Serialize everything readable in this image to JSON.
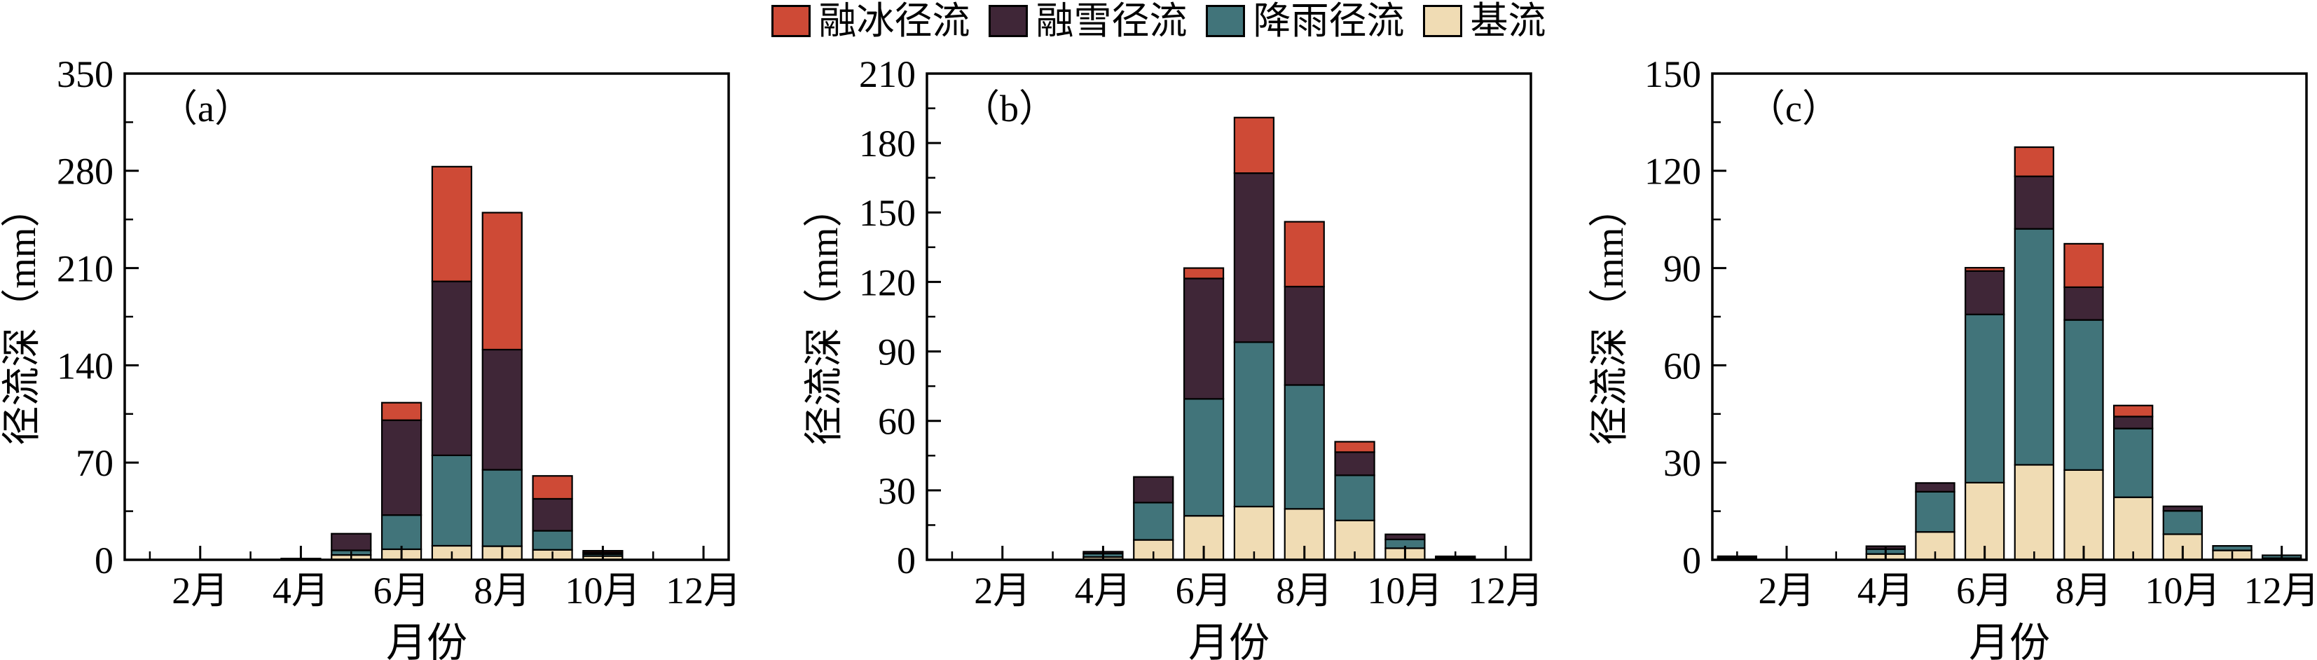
{
  "legend": {
    "items": [
      {
        "label": "融冰径流",
        "color": "#CE4A36"
      },
      {
        "label": "融雪径流",
        "color": "#3F2637"
      },
      {
        "label": "降雨径流",
        "color": "#41747A"
      },
      {
        "label": "基流",
        "color": "#F0DCB4"
      }
    ]
  },
  "colors": {
    "ice_melt": "#CE4A36",
    "snow_melt": "#3F2637",
    "rainfall": "#41747A",
    "baseflow": "#F0DCB4",
    "axis": "#000000"
  },
  "chart_data": [
    {
      "type": "bar",
      "stacked": true,
      "panel_label": "（a）",
      "xlabel": "月份",
      "ylabel": "径流深（mm）",
      "ylim": [
        0,
        350
      ],
      "yticks": [
        0,
        70,
        140,
        210,
        280,
        350
      ],
      "categories": [
        "1月",
        "2月",
        "3月",
        "4月",
        "5月",
        "6月",
        "7月",
        "8月",
        "9月",
        "10月",
        "11月",
        "12月"
      ],
      "labeled_months": [
        2,
        4,
        6,
        8,
        10,
        12
      ],
      "grid": false,
      "legend_position": "top-center",
      "series": [
        {
          "name": "基流",
          "color": "#F0DCB4",
          "values": [
            0,
            0,
            0,
            0.3,
            3.5,
            7.6,
            10.1,
            9.8,
            7.2,
            2.7,
            0,
            0
          ]
        },
        {
          "name": "降雨径流",
          "color": "#41747A",
          "values": [
            0,
            0,
            0,
            0.3,
            3.3,
            24.6,
            65.1,
            55.0,
            13.7,
            1.4,
            0,
            0
          ]
        },
        {
          "name": "融雪径流",
          "color": "#3F2637",
          "values": [
            0,
            0,
            0,
            0.3,
            12.0,
            68.3,
            125.2,
            86.5,
            23.0,
            1.2,
            0,
            0
          ]
        },
        {
          "name": "融冰径流",
          "color": "#CE4A36",
          "values": [
            0,
            0,
            0,
            0,
            0,
            12.6,
            82.6,
            98.6,
            16.5,
            1.2,
            0,
            0
          ]
        }
      ]
    },
    {
      "type": "bar",
      "stacked": true,
      "panel_label": "（b）",
      "xlabel": "月份",
      "ylabel": "径流深（mm）",
      "ylim": [
        0,
        210
      ],
      "yticks": [
        0,
        30,
        60,
        90,
        120,
        150,
        180,
        210
      ],
      "categories": [
        "1月",
        "2月",
        "3月",
        "4月",
        "5月",
        "6月",
        "7月",
        "8月",
        "9月",
        "10月",
        "11月",
        "12月"
      ],
      "labeled_months": [
        2,
        4,
        6,
        8,
        10,
        12
      ],
      "grid": false,
      "legend_position": "top-center",
      "series": [
        {
          "name": "基流",
          "color": "#F0DCB4",
          "values": [
            0,
            0,
            0,
            1.2,
            8.6,
            19.0,
            23.0,
            22.0,
            17.0,
            5.0,
            0.5,
            0
          ]
        },
        {
          "name": "降雨径流",
          "color": "#41747A",
          "values": [
            0,
            0,
            0,
            1.5,
            16.1,
            50.5,
            71.0,
            53.5,
            19.5,
            3.8,
            0.4,
            0
          ]
        },
        {
          "name": "融雪径流",
          "color": "#3F2637",
          "values": [
            0,
            0,
            0,
            0.8,
            11.1,
            52.0,
            73.0,
            42.5,
            10.0,
            2.2,
            0.6,
            0
          ]
        },
        {
          "name": "融冰径流",
          "color": "#CE4A36",
          "values": [
            0,
            0,
            0,
            0,
            0,
            4.5,
            24.0,
            28.0,
            4.5,
            0,
            0,
            0
          ]
        }
      ]
    },
    {
      "type": "bar",
      "stacked": true,
      "panel_label": "（c）",
      "xlabel": "月份",
      "ylabel": "径流深（mm）",
      "ylim": [
        0,
        150
      ],
      "yticks": [
        0,
        30,
        60,
        90,
        120,
        150
      ],
      "categories": [
        "1月",
        "2月",
        "3月",
        "4月",
        "5月",
        "6月",
        "7月",
        "8月",
        "9月",
        "10月",
        "11月",
        "12月"
      ],
      "labeled_months": [
        2,
        4,
        6,
        8,
        10,
        12
      ],
      "grid": false,
      "legend_position": "top-center",
      "series": [
        {
          "name": "基流",
          "color": "#F0DCB4",
          "values": [
            0.3,
            0,
            0,
            1.8,
            8.6,
            23.8,
            29.3,
            27.7,
            19.3,
            7.9,
            2.9,
            0.5
          ]
        },
        {
          "name": "降雨径流",
          "color": "#41747A",
          "values": [
            0.3,
            0,
            0,
            1.5,
            12.4,
            51.9,
            72.8,
            46.3,
            21.2,
            7.2,
            1.4,
            0.9
          ]
        },
        {
          "name": "融雪径流",
          "color": "#3F2637",
          "values": [
            0.5,
            0,
            0,
            0.9,
            2.7,
            13.4,
            16.2,
            10.1,
            3.7,
            1.4,
            0,
            0
          ]
        },
        {
          "name": "融冰径流",
          "color": "#CE4A36",
          "values": [
            0,
            0,
            0,
            0,
            0,
            1.0,
            9.0,
            13.4,
            3.4,
            0,
            0,
            0
          ]
        }
      ]
    }
  ]
}
